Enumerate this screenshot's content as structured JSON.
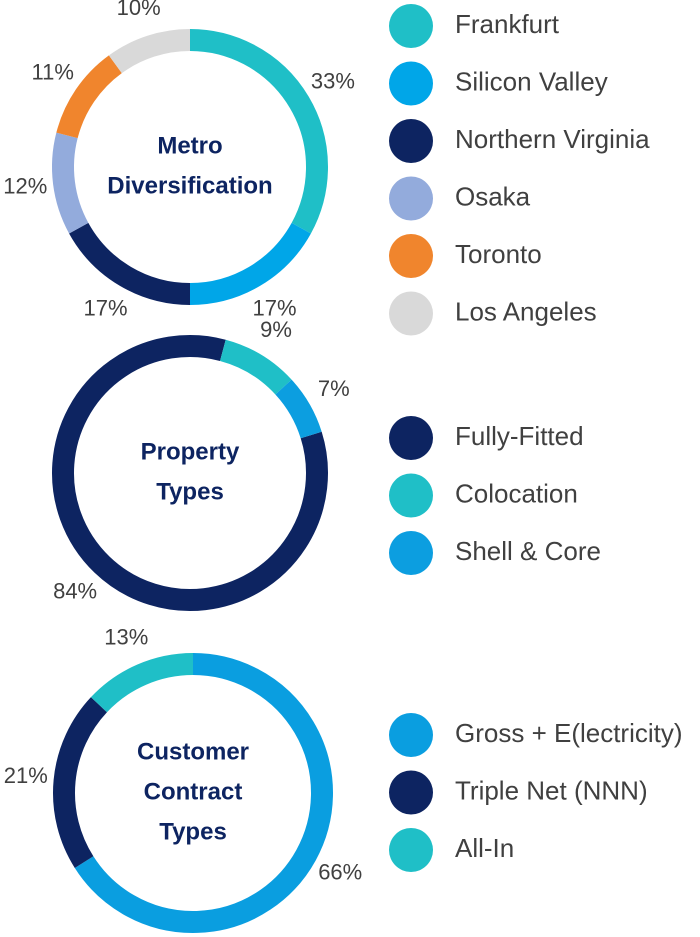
{
  "chart_data": [
    {
      "type": "pie",
      "donut": true,
      "title": [
        "Metro",
        "Diversification"
      ],
      "series": [
        {
          "name": "Frankfurt",
          "color": "#1fbfc7",
          "values": [
            33
          ],
          "value_labels": [
            "33%"
          ]
        },
        {
          "name": "Silicon Valley",
          "color": "#00a6e8",
          "values": [
            17
          ],
          "value_labels": [
            "17%"
          ]
        },
        {
          "name": "Northern Virginia",
          "color": "#0d2461",
          "values": [
            17
          ],
          "value_labels": [
            "17%"
          ]
        },
        {
          "name": "Osaka",
          "color": "#93abdc",
          "values": [
            12
          ],
          "value_labels": [
            "12%"
          ]
        },
        {
          "name": "Toronto",
          "color": "#f0852d",
          "values": [
            11
          ],
          "value_labels": [
            "11%"
          ]
        },
        {
          "name": "Los Angeles",
          "color": "#d9d9d9",
          "values": [
            10
          ],
          "value_labels": [
            "10%"
          ]
        }
      ]
    },
    {
      "type": "pie",
      "donut": true,
      "title": [
        "Property",
        "Types"
      ],
      "series": [
        {
          "name": "Fully-Fitted",
          "color": "#0d2461",
          "values": [
            84
          ],
          "value_labels": [
            "84%"
          ]
        },
        {
          "name": "Colocation",
          "color": "#1fbfc7",
          "values": [
            9
          ],
          "value_labels": [
            "9%"
          ]
        },
        {
          "name": "Shell & Core",
          "color": "#0c9ee0",
          "values": [
            7
          ],
          "value_labels": [
            "7%"
          ]
        }
      ]
    },
    {
      "type": "pie",
      "donut": true,
      "title": [
        "Customer",
        "Contract",
        "Types"
      ],
      "series": [
        {
          "name": "Gross + E(lectricity)",
          "color": "#0a9ee0",
          "values": [
            66
          ],
          "value_labels": [
            "66%"
          ]
        },
        {
          "name": "Triple Net (NNN)",
          "color": "#0d2461",
          "values": [
            21
          ],
          "value_labels": [
            "21%"
          ]
        },
        {
          "name": "All-In",
          "color": "#1fbfc7",
          "values": [
            13
          ],
          "value_labels": [
            "13%"
          ]
        }
      ]
    }
  ]
}
